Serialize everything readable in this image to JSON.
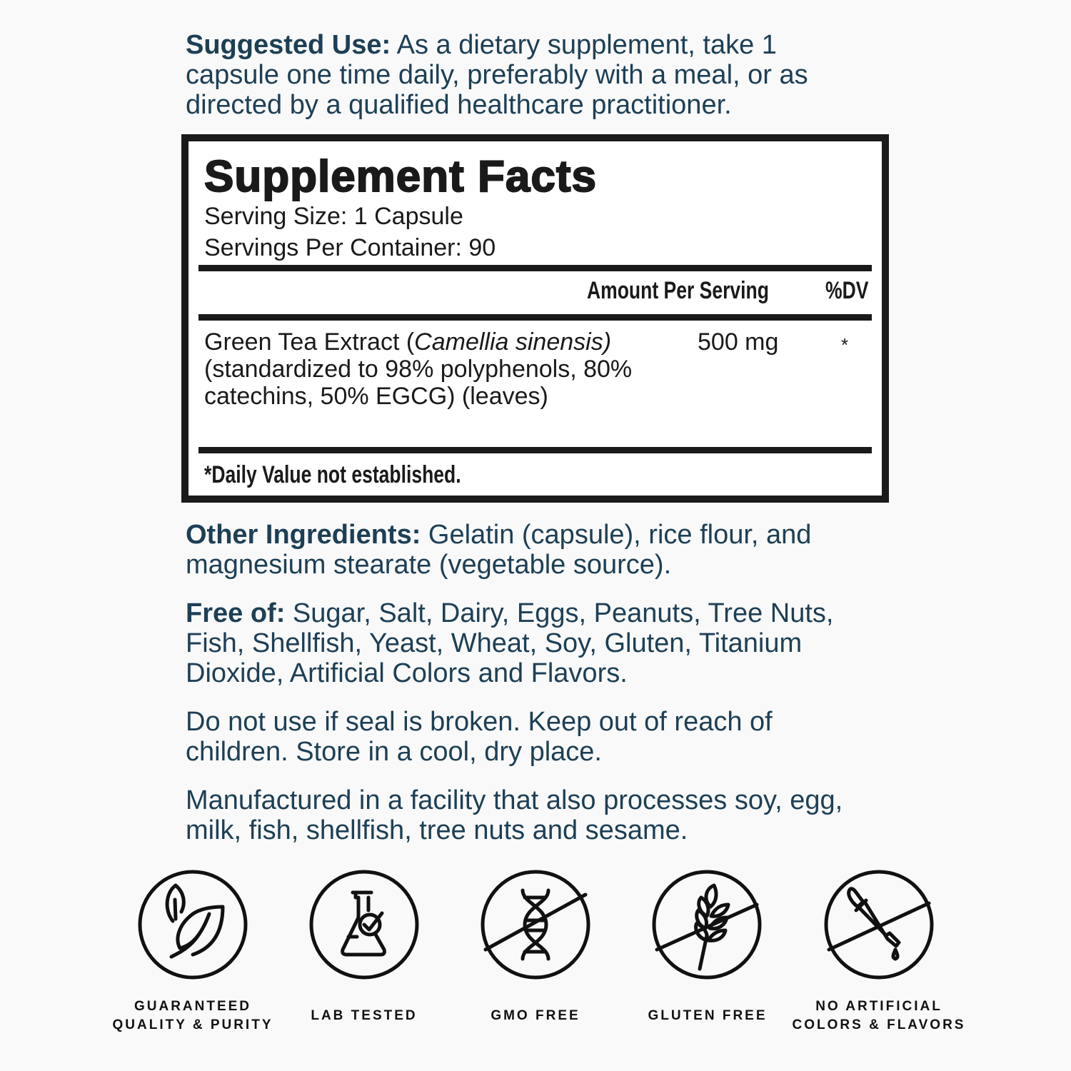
{
  "suggested_use": {
    "label": "Suggested Use:",
    "text": " As a dietary supplement, take 1 capsule one time daily, preferably with a meal, or as directed by a qualified healthcare practitioner."
  },
  "facts": {
    "title": "Supplement Facts",
    "serving_size": "Serving Size: 1 Capsule",
    "servings_per_container": "Servings Per Container: 90",
    "header_amount": "Amount Per Serving",
    "header_dv": "%DV",
    "ingredient": {
      "name": "Green Tea Extract (",
      "latin": "Camellia sinensis)",
      "detail": " (standardized to 98% polyphenols, 80% catechins, 50% EGCG) (leaves)",
      "amount": "500 mg",
      "dv": "*"
    },
    "footnote": "*Daily Value not established."
  },
  "other_ingredients": {
    "label": "Other Ingredients:",
    "text": " Gelatin (capsule), rice flour, and magnesium stearate (vegetable source)."
  },
  "free_of": {
    "label": "Free of:",
    "text": " Sugar, Salt, Dairy, Eggs, Peanuts, Tree Nuts, Fish, Shellfish, Yeast, Wheat, Soy, Gluten, Titanium Dioxide, Artificial Colors and Flavors."
  },
  "warning": "Do not use if seal is broken. Keep out of reach of children. Store in a cool, dry place.",
  "allergen": "Manufactured in a facility that also processes soy, egg, milk, fish, shellfish, tree nuts and sesame.",
  "badges": [
    {
      "icon": "leaf-icon",
      "line1": "GUARANTEED",
      "line2": "QUALITY & PURITY"
    },
    {
      "icon": "flask-check-icon",
      "line1": "LAB TESTED",
      "line2": ""
    },
    {
      "icon": "dna-crossed-icon",
      "line1": "GMO FREE",
      "line2": ""
    },
    {
      "icon": "wheat-crossed-icon",
      "line1": "GLUTEN FREE",
      "line2": ""
    },
    {
      "icon": "dropper-crossed-icon",
      "line1": "NO ARTIFICIAL",
      "line2": "COLORS & FLAVORS"
    }
  ],
  "colors": {
    "text": "#1d3f55",
    "background": "#f9f9f9",
    "box": "#1a1a1a"
  }
}
